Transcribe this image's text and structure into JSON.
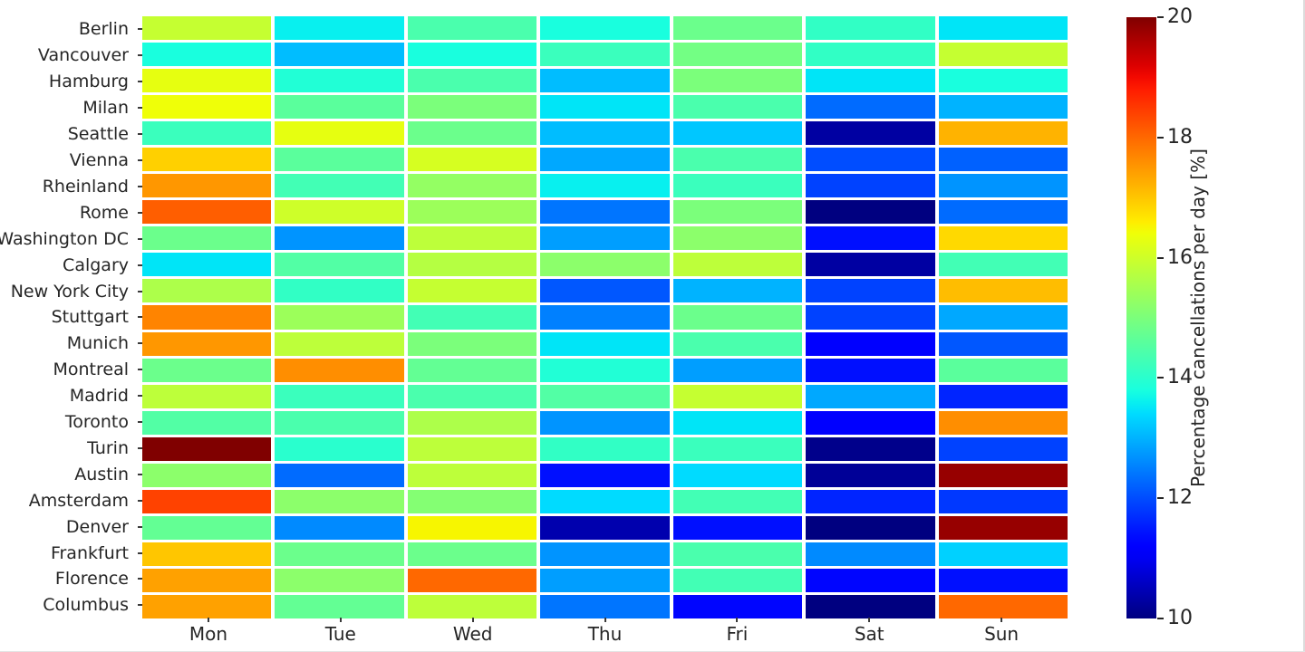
{
  "chart_data": {
    "type": "heatmap",
    "title": "",
    "xlabel": "",
    "ylabel": "",
    "colorbar_label": "Percentage cancellations per day [%]",
    "colormap": "jet",
    "vmin": 10,
    "vmax": 20,
    "colorbar_ticks": [
      20,
      18,
      16,
      14,
      12,
      10
    ],
    "grid_line_color": "#ffffff",
    "background_color": "#ffffff",
    "text_color": "#262626",
    "columns": [
      "Mon",
      "Tue",
      "Wed",
      "Thu",
      "Fri",
      "Sat",
      "Sun"
    ],
    "rows": [
      "Berlin",
      "Vancouver",
      "Hamburg",
      "Milan",
      "Seattle",
      "Vienna",
      "Rheinland",
      "Rome",
      "Washington DC",
      "Calgary",
      "New York City",
      "Stuttgart",
      "Munich",
      "Montreal",
      "Madrid",
      "Toronto",
      "Turin",
      "Austin",
      "Amsterdam",
      "Denver",
      "Frankfurt",
      "Florence",
      "Columbus"
    ],
    "values": [
      [
        15.9,
        13.6,
        14.4,
        13.8,
        14.8,
        14.1,
        13.5
      ],
      [
        13.8,
        13.1,
        13.8,
        14.2,
        14.9,
        14.1,
        15.9
      ],
      [
        16.3,
        13.9,
        14.4,
        13.1,
        15.0,
        13.5,
        13.8
      ],
      [
        16.4,
        14.6,
        15.0,
        13.5,
        14.4,
        12.3,
        13.0
      ],
      [
        14.2,
        16.3,
        14.8,
        13.1,
        13.2,
        10.3,
        17.2
      ],
      [
        16.9,
        14.6,
        16.1,
        12.9,
        14.4,
        12.0,
        12.2
      ],
      [
        17.5,
        14.3,
        15.3,
        13.6,
        14.2,
        11.9,
        12.7
      ],
      [
        18.1,
        16.0,
        15.4,
        12.4,
        15.0,
        10.0,
        12.3
      ],
      [
        14.8,
        12.7,
        15.8,
        12.8,
        15.2,
        11.4,
        16.8
      ],
      [
        13.5,
        14.5,
        15.7,
        15.2,
        15.8,
        10.3,
        14.3
      ],
      [
        15.6,
        14.1,
        15.9,
        12.1,
        13.0,
        11.9,
        17.1
      ],
      [
        17.7,
        15.4,
        14.3,
        12.5,
        14.8,
        11.9,
        12.9
      ],
      [
        17.5,
        15.8,
        15.0,
        13.5,
        14.4,
        11.2,
        12.1
      ],
      [
        14.8,
        17.6,
        14.7,
        13.9,
        12.8,
        11.4,
        14.6
      ],
      [
        15.8,
        14.2,
        14.4,
        14.5,
        15.9,
        12.9,
        11.6
      ],
      [
        14.5,
        14.4,
        15.6,
        12.7,
        13.5,
        11.2,
        17.6
      ],
      [
        20.0,
        14.0,
        15.8,
        14.1,
        14.2,
        10.1,
        11.9
      ],
      [
        15.2,
        12.3,
        15.8,
        11.4,
        13.4,
        10.2,
        19.8
      ],
      [
        18.4,
        15.2,
        15.1,
        13.4,
        14.3,
        11.6,
        11.8
      ],
      [
        14.7,
        12.6,
        16.5,
        10.4,
        11.4,
        10.0,
        19.8
      ],
      [
        17.0,
        14.8,
        14.8,
        12.7,
        14.4,
        12.6,
        13.3
      ],
      [
        17.4,
        15.2,
        18.0,
        12.8,
        14.3,
        11.3,
        11.4
      ],
      [
        17.4,
        14.7,
        15.8,
        12.4,
        11.3,
        10.0,
        18.0
      ]
    ]
  }
}
